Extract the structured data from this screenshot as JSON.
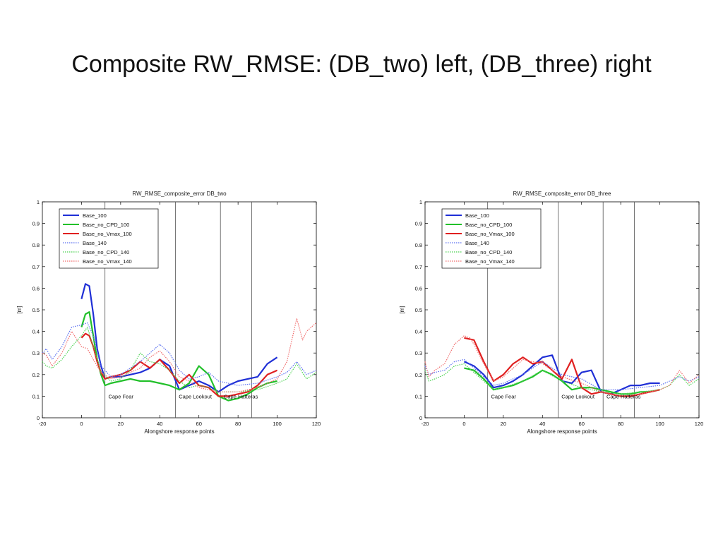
{
  "slide": {
    "title": "Composite RW_RMSE: (DB_two) left, (DB_three) right"
  },
  "colors": {
    "Base_100": "#1f2fd6",
    "Base_no_CPD_100": "#22c02a",
    "Base_no_Vmax_100": "#e02020",
    "Base_140": "#5a6ff0",
    "Base_no_CPD_140": "#48d24e",
    "Base_no_Vmax_140": "#f06a6a"
  },
  "chart_data": [
    {
      "type": "line",
      "title": "RW_RMSE_composite_error DB_two",
      "xlabel": "Alongshore response points",
      "ylabel": "[m]",
      "xlim": [
        -20,
        120
      ],
      "ylim": [
        0,
        1
      ],
      "xticks": [
        "-20",
        "0",
        "20",
        "40",
        "60",
        "80",
        "100",
        "120"
      ],
      "yticks": [
        "0",
        "0.1",
        "0.2",
        "0.3",
        "0.4",
        "0.5",
        "0.6",
        "0.7",
        "0.8",
        "0.9",
        "1"
      ],
      "grid": false,
      "legend_position": "top-left",
      "vlines": [
        12,
        48,
        71,
        87
      ],
      "annotations": [
        {
          "text": "Cape Fear",
          "x": 13,
          "y": 0.1
        },
        {
          "text": "Cape Lookout",
          "x": 49,
          "y": 0.1
        },
        {
          "text": "Cape Hatteras",
          "x": 72,
          "y": 0.1
        }
      ],
      "series": [
        {
          "name": "Base_100",
          "style": "solid",
          "x": [
            0,
            2,
            4,
            6,
            8,
            10,
            12,
            15,
            20,
            25,
            30,
            35,
            40,
            45,
            50,
            55,
            60,
            65,
            70,
            75,
            80,
            85,
            90,
            95,
            100
          ],
          "y": [
            0.55,
            0.62,
            0.61,
            0.48,
            0.32,
            0.24,
            0.18,
            0.19,
            0.19,
            0.2,
            0.21,
            0.23,
            0.27,
            0.24,
            0.13,
            0.15,
            0.17,
            0.15,
            0.12,
            0.15,
            0.17,
            0.18,
            0.19,
            0.25,
            0.28
          ]
        },
        {
          "name": "Base_no_CPD_100",
          "style": "solid",
          "x": [
            0,
            2,
            4,
            6,
            8,
            10,
            12,
            15,
            20,
            25,
            30,
            35,
            40,
            45,
            50,
            55,
            60,
            65,
            70,
            75,
            80,
            85,
            90,
            95,
            100
          ],
          "y": [
            0.42,
            0.48,
            0.49,
            0.38,
            0.27,
            0.2,
            0.15,
            0.16,
            0.17,
            0.18,
            0.17,
            0.17,
            0.16,
            0.15,
            0.13,
            0.16,
            0.24,
            0.2,
            0.1,
            0.08,
            0.09,
            0.11,
            0.14,
            0.16,
            0.17
          ]
        },
        {
          "name": "Base_no_Vmax_100",
          "style": "solid",
          "x": [
            0,
            2,
            4,
            6,
            8,
            10,
            12,
            15,
            20,
            25,
            30,
            35,
            40,
            45,
            50,
            55,
            60,
            65,
            70,
            75,
            80,
            85,
            90,
            95,
            100
          ],
          "y": [
            0.37,
            0.39,
            0.38,
            0.33,
            0.26,
            0.21,
            0.18,
            0.19,
            0.2,
            0.22,
            0.26,
            0.23,
            0.27,
            0.22,
            0.16,
            0.2,
            0.15,
            0.14,
            0.1,
            0.1,
            0.11,
            0.12,
            0.15,
            0.2,
            0.22
          ]
        },
        {
          "name": "Base_140",
          "style": "dotted",
          "x": [
            -20,
            -18,
            -15,
            -10,
            -5,
            0,
            3,
            6,
            10,
            15,
            20,
            25,
            30,
            35,
            40,
            45,
            50,
            55,
            60,
            65,
            70,
            80,
            90,
            100,
            105,
            110,
            115,
            120
          ],
          "y": [
            0.3,
            0.32,
            0.27,
            0.33,
            0.42,
            0.43,
            0.44,
            0.38,
            0.24,
            0.19,
            0.2,
            0.23,
            0.26,
            0.3,
            0.34,
            0.3,
            0.22,
            0.18,
            0.19,
            0.21,
            0.17,
            0.15,
            0.16,
            0.19,
            0.21,
            0.26,
            0.2,
            0.22
          ]
        },
        {
          "name": "Base_no_CPD_140",
          "style": "dotted",
          "x": [
            -20,
            -18,
            -15,
            -10,
            -5,
            0,
            3,
            6,
            10,
            15,
            20,
            25,
            30,
            35,
            40,
            45,
            50,
            55,
            60,
            65,
            70,
            80,
            90,
            100,
            105,
            110,
            115,
            120
          ],
          "y": [
            0.26,
            0.24,
            0.23,
            0.27,
            0.33,
            0.38,
            0.42,
            0.33,
            0.21,
            0.17,
            0.18,
            0.22,
            0.3,
            0.26,
            0.25,
            0.22,
            0.17,
            0.14,
            0.15,
            0.14,
            0.12,
            0.12,
            0.13,
            0.16,
            0.18,
            0.25,
            0.18,
            0.21
          ]
        },
        {
          "name": "Base_no_Vmax_140",
          "style": "dotted",
          "x": [
            -20,
            -18,
            -15,
            -10,
            -5,
            0,
            3,
            6,
            10,
            15,
            20,
            25,
            30,
            35,
            40,
            45,
            50,
            55,
            60,
            65,
            70,
            80,
            90,
            100,
            105,
            110,
            113,
            115,
            120
          ],
          "y": [
            0.3,
            0.29,
            0.24,
            0.3,
            0.4,
            0.33,
            0.32,
            0.27,
            0.21,
            0.18,
            0.19,
            0.21,
            0.23,
            0.28,
            0.31,
            0.26,
            0.19,
            0.17,
            0.14,
            0.13,
            0.12,
            0.12,
            0.14,
            0.18,
            0.26,
            0.46,
            0.36,
            0.4,
            0.44
          ]
        }
      ]
    },
    {
      "type": "line",
      "title": "RW_RMSE_composite_error DB_three",
      "xlabel": "Alongshore response points",
      "ylabel": "[m]",
      "xlim": [
        -20,
        120
      ],
      "ylim": [
        0,
        1
      ],
      "xticks": [
        "-20",
        "0",
        "20",
        "40",
        "60",
        "80",
        "100",
        "120"
      ],
      "yticks": [
        "0",
        "0.1",
        "0.2",
        "0.3",
        "0.4",
        "0.5",
        "0.6",
        "0.7",
        "0.8",
        "0.9",
        "1"
      ],
      "grid": false,
      "legend_position": "top-left",
      "vlines": [
        12,
        48,
        71,
        87
      ],
      "annotations": [
        {
          "text": "Cape Fear",
          "x": 13,
          "y": 0.1
        },
        {
          "text": "Cape Lookout",
          "x": 49,
          "y": 0.1
        },
        {
          "text": "Cape Hatteras",
          "x": 72,
          "y": 0.1
        }
      ],
      "series": [
        {
          "name": "Base_100",
          "style": "solid",
          "x": [
            0,
            5,
            10,
            15,
            20,
            25,
            30,
            35,
            40,
            45,
            50,
            55,
            60,
            65,
            70,
            75,
            80,
            85,
            90,
            95,
            100
          ],
          "y": [
            0.26,
            0.24,
            0.2,
            0.14,
            0.15,
            0.17,
            0.2,
            0.24,
            0.28,
            0.29,
            0.17,
            0.16,
            0.21,
            0.22,
            0.12,
            0.11,
            0.13,
            0.15,
            0.15,
            0.16,
            0.16
          ]
        },
        {
          "name": "Base_no_CPD_100",
          "style": "solid",
          "x": [
            0,
            5,
            10,
            15,
            20,
            25,
            30,
            35,
            40,
            45,
            50,
            55,
            60,
            65,
            70,
            75,
            80,
            85,
            90,
            95,
            100
          ],
          "y": [
            0.23,
            0.22,
            0.18,
            0.13,
            0.14,
            0.15,
            0.17,
            0.19,
            0.22,
            0.2,
            0.17,
            0.13,
            0.14,
            0.14,
            0.13,
            0.12,
            0.11,
            0.11,
            0.12,
            0.12,
            0.13
          ]
        },
        {
          "name": "Base_no_Vmax_100",
          "style": "solid",
          "x": [
            0,
            5,
            10,
            15,
            20,
            25,
            30,
            35,
            40,
            45,
            50,
            55,
            60,
            65,
            70,
            75,
            80,
            85,
            90,
            95,
            100
          ],
          "y": [
            0.37,
            0.36,
            0.26,
            0.17,
            0.2,
            0.25,
            0.28,
            0.25,
            0.26,
            0.22,
            0.18,
            0.27,
            0.14,
            0.11,
            0.12,
            0.11,
            0.1,
            0.1,
            0.11,
            0.12,
            0.13
          ]
        },
        {
          "name": "Base_140",
          "style": "dotted",
          "x": [
            -20,
            -18,
            -15,
            -10,
            -5,
            0,
            5,
            10,
            15,
            20,
            30,
            40,
            50,
            60,
            70,
            80,
            90,
            100,
            105,
            110,
            115,
            120
          ],
          "y": [
            0.24,
            0.2,
            0.21,
            0.22,
            0.26,
            0.27,
            0.23,
            0.19,
            0.15,
            0.16,
            0.2,
            0.26,
            0.2,
            0.18,
            0.13,
            0.13,
            0.14,
            0.15,
            0.17,
            0.19,
            0.17,
            0.19
          ]
        },
        {
          "name": "Base_no_CPD_140",
          "style": "dotted",
          "x": [
            -20,
            -18,
            -15,
            -10,
            -5,
            0,
            5,
            10,
            15,
            20,
            30,
            40,
            50,
            60,
            70,
            80,
            90,
            100,
            105,
            110,
            115,
            120
          ],
          "y": [
            0.22,
            0.17,
            0.18,
            0.2,
            0.24,
            0.25,
            0.21,
            0.17,
            0.13,
            0.14,
            0.17,
            0.22,
            0.17,
            0.14,
            0.12,
            0.11,
            0.12,
            0.13,
            0.15,
            0.2,
            0.15,
            0.18
          ]
        },
        {
          "name": "Base_no_Vmax_140",
          "style": "dotted",
          "x": [
            -20,
            -18,
            -15,
            -10,
            -5,
            0,
            3,
            5,
            10,
            15,
            20,
            30,
            40,
            50,
            60,
            70,
            80,
            90,
            100,
            105,
            110,
            115,
            120
          ],
          "y": [
            0.26,
            0.19,
            0.22,
            0.25,
            0.34,
            0.38,
            0.37,
            0.34,
            0.25,
            0.17,
            0.19,
            0.27,
            0.25,
            0.19,
            0.16,
            0.12,
            0.1,
            0.11,
            0.13,
            0.15,
            0.22,
            0.16,
            0.2
          ]
        }
      ]
    }
  ]
}
